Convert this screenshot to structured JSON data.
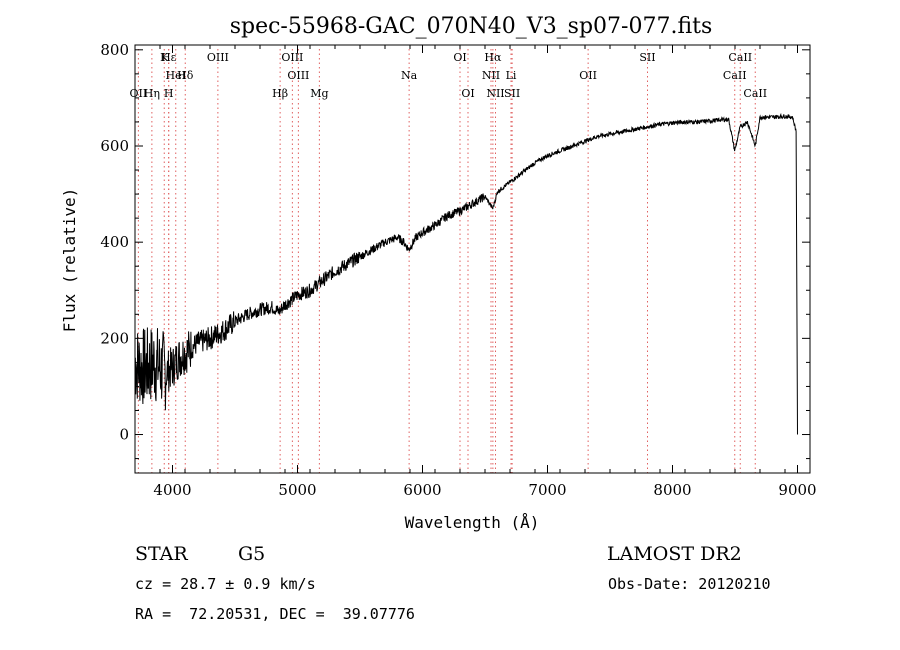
{
  "chart_data": {
    "type": "line",
    "title": "spec-55968-GAC_070N40_V3_sp07-077.fits",
    "xlabel": "Wavelength (Å)",
    "ylabel": "Flux (relative)",
    "xlim": [
      3700,
      9100
    ],
    "ylim": [
      -80,
      810
    ],
    "xticks": [
      4000,
      5000,
      6000,
      7000,
      8000,
      9000
    ],
    "yticks": [
      0,
      200,
      400,
      600,
      800
    ],
    "grid": false,
    "series": [
      {
        "x": [
          3700,
          3750,
          3800,
          3850,
          3900,
          3950,
          4000,
          4050,
          4100,
          4150,
          4200,
          4300,
          4400,
          4500,
          4600,
          4700,
          4800,
          4850,
          4900,
          5000,
          5100,
          5200,
          5300,
          5400,
          5500,
          5600,
          5700,
          5800,
          5850,
          5890,
          5950,
          6000,
          6100,
          6200,
          6300,
          6400,
          6500,
          6562,
          6600,
          6700,
          6800,
          6900,
          7000,
          7100,
          7200,
          7300,
          7400,
          7500,
          7600,
          7700,
          7800,
          7900,
          8000,
          8100,
          8200,
          8300,
          8400,
          8450,
          8498,
          8542,
          8600,
          8662,
          8700,
          8800,
          8900,
          8960,
          8990,
          9000
        ],
        "y": [
          150,
          140,
          140,
          150,
          140,
          130,
          140,
          160,
          170,
          180,
          190,
          200,
          215,
          235,
          250,
          260,
          265,
          255,
          270,
          290,
          300,
          320,
          340,
          355,
          370,
          385,
          400,
          410,
          400,
          385,
          410,
          420,
          435,
          455,
          465,
          480,
          495,
          470,
          505,
          525,
          545,
          565,
          580,
          590,
          600,
          610,
          620,
          625,
          630,
          635,
          640,
          645,
          648,
          650,
          650,
          652,
          655,
          655,
          590,
          640,
          650,
          600,
          660,
          660,
          662,
          660,
          630,
          0
        ]
      }
    ],
    "spectral_lines": [
      {
        "label": "Hε",
        "x": 3970,
        "row": 0
      },
      {
        "label": "K",
        "x": 3934,
        "row": 0
      },
      {
        "label": "HeI",
        "x": 4026,
        "row": 1
      },
      {
        "label": "Hδ",
        "x": 4102,
        "row": 1
      },
      {
        "label": "OII",
        "x": 3727,
        "row": 2
      },
      {
        "label": "Hη",
        "x": 3835,
        "row": 2
      },
      {
        "label": "H",
        "x": 3969,
        "row": 2
      },
      {
        "label": "OIII",
        "x": 4363,
        "row": 0
      },
      {
        "label": "OIII",
        "x": 4959,
        "row": 0
      },
      {
        "label": "OIII",
        "x": 5007,
        "row": 1
      },
      {
        "label": "Hβ",
        "x": 4861,
        "row": 2
      },
      {
        "label": "Mg",
        "x": 5175,
        "row": 2
      },
      {
        "label": "Na",
        "x": 5893,
        "row": 1
      },
      {
        "label": "OI",
        "x": 6300,
        "row": 0
      },
      {
        "label": "OI",
        "x": 6364,
        "row": 2
      },
      {
        "label": "Hα",
        "x": 6563,
        "row": 0
      },
      {
        "label": "NII",
        "x": 6548,
        "row": 1
      },
      {
        "label": "Li",
        "x": 6708,
        "row": 1
      },
      {
        "label": "NII",
        "x": 6584,
        "row": 2
      },
      {
        "label": "SII",
        "x": 6717,
        "row": 2
      },
      {
        "label": "OII",
        "x": 7325,
        "row": 1
      },
      {
        "label": "SII",
        "x": 7800,
        "row": 0
      },
      {
        "label": "CaII",
        "x": 8542,
        "row": 0
      },
      {
        "label": "CaII",
        "x": 8498,
        "row": 1
      },
      {
        "label": "CaII",
        "x": 8662,
        "row": 2
      }
    ]
  },
  "info": {
    "object_class": "STAR",
    "subclass": "G5",
    "survey": "LAMOST DR2",
    "cz": "cz = 28.7 ± 0.9 km/s",
    "obs_date": "Obs-Date: 20120210",
    "coords": "RA =  72.20531, DEC =  39.07776"
  },
  "colors": {
    "line_marker": "#e06060",
    "spectrum": "#000000"
  }
}
